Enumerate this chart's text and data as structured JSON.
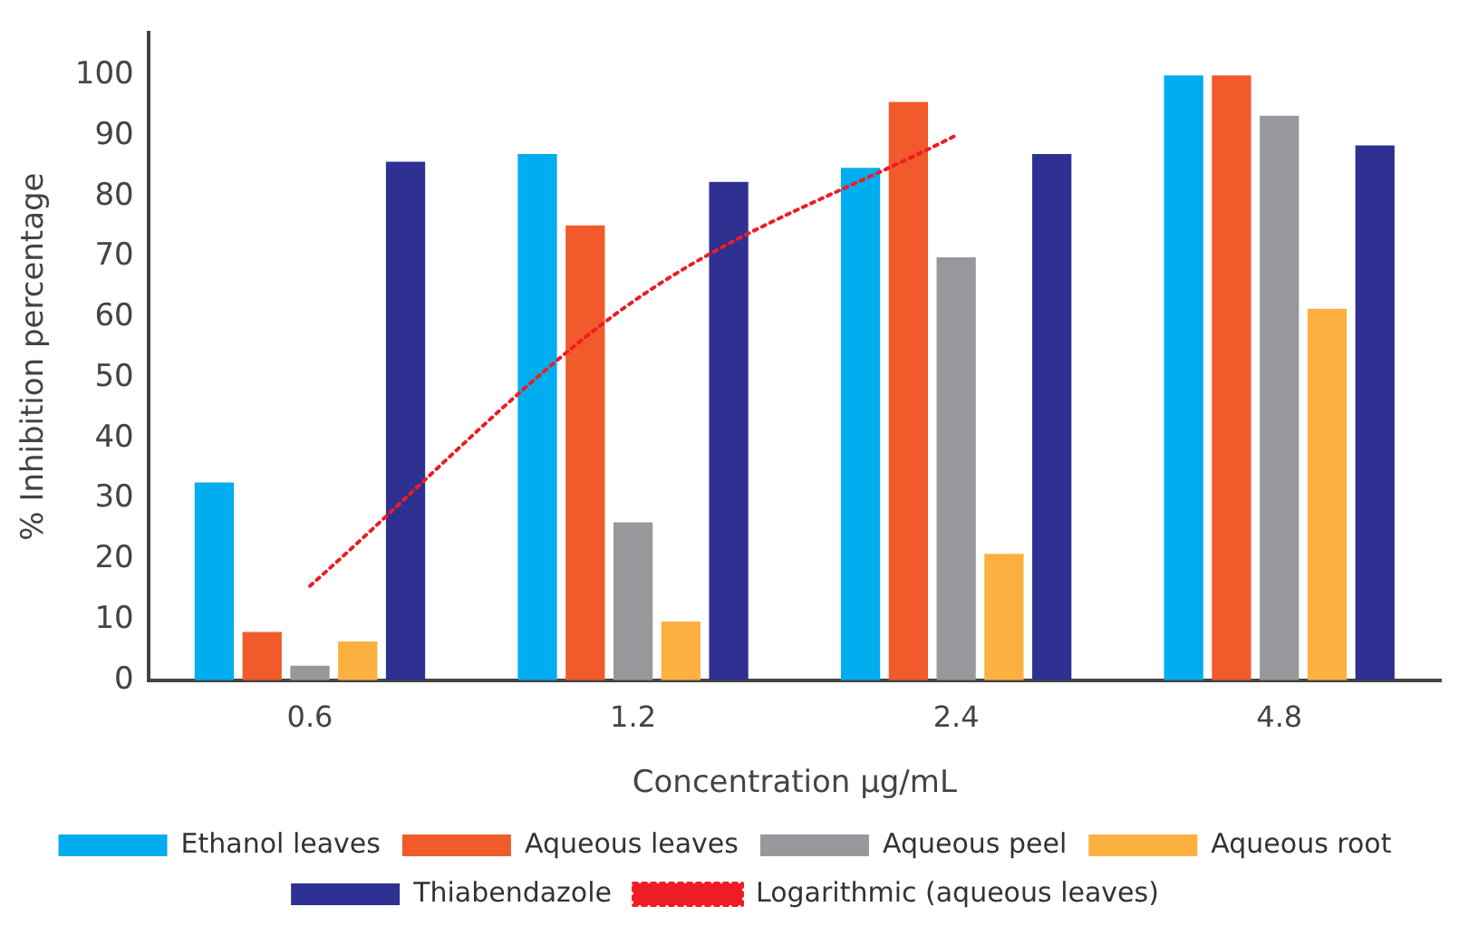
{
  "chart_data": {
    "type": "bar",
    "xlabel": "Concentration μg/mL",
    "ylabel": "% Inhibition percentage",
    "categories": [
      "0.6",
      "1.2",
      "2.4",
      "4.8"
    ],
    "series": [
      {
        "name": "Ethanol leaves",
        "color": "#00adee",
        "values": [
          32.7,
          87,
          84.7,
          100
        ]
      },
      {
        "name": "Aqueous leaves",
        "color": "#f15a2b",
        "values": [
          8,
          75.2,
          95.6,
          100
        ]
      },
      {
        "name": "Aqueous peel",
        "color": "#98989c",
        "values": [
          2.4,
          26.1,
          69.9,
          93.3
        ]
      },
      {
        "name": "Aqueous root",
        "color": "#fbb040",
        "values": [
          6.4,
          9.7,
          20.9,
          61.4
        ]
      },
      {
        "name": "Thiabendazole",
        "color": "#2e3192",
        "values": [
          85.7,
          82.4,
          87,
          88.4
        ]
      },
      {
        "name": "Logarithmic (aqueous leaves)",
        "type": "line",
        "color": "#ee1c25",
        "line_style": "dotted",
        "marker": "none",
        "values": [
          15.6,
          62.6,
          90.1,
          null
        ]
      }
    ],
    "ylim": [
      0,
      107
    ],
    "yticks": [
      0,
      10,
      20,
      30,
      40,
      50,
      60,
      70,
      80,
      90,
      100
    ],
    "grid": false,
    "legend": "bottom"
  }
}
